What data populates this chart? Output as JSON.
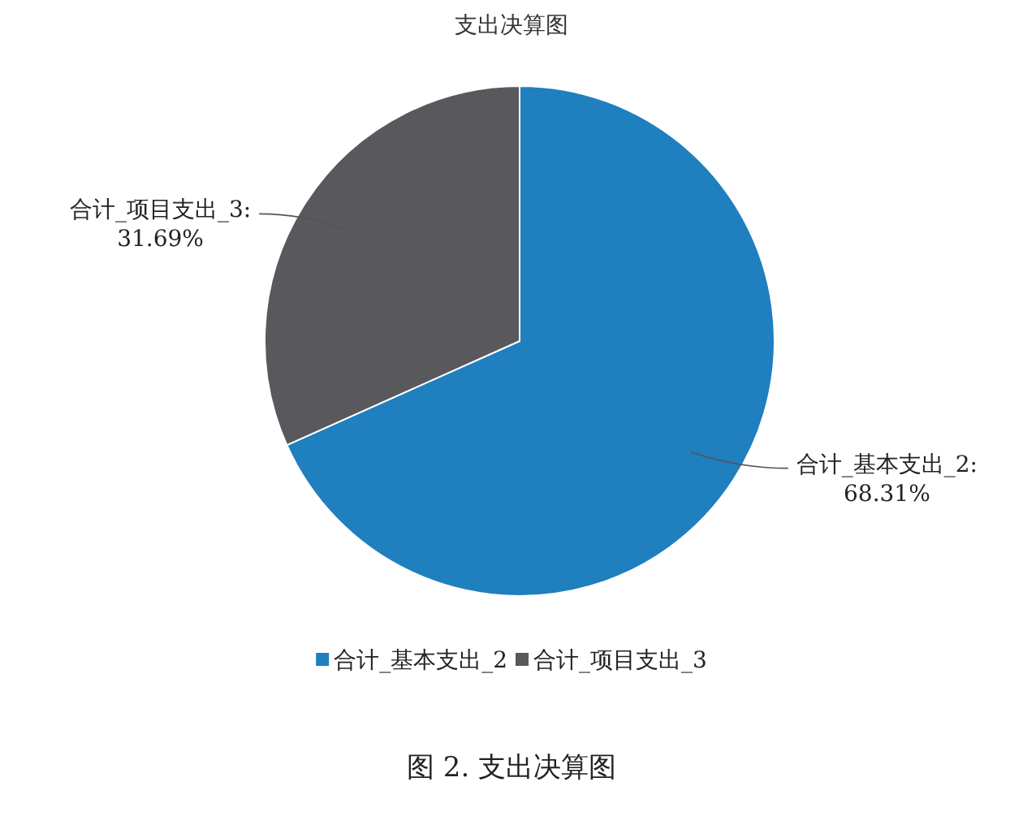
{
  "chart_data": {
    "type": "pie",
    "title": "支出决算图",
    "categories": [
      "合计_基本支出_2",
      "合计_项目支出_3"
    ],
    "values": [
      68.31,
      31.69
    ],
    "colors": [
      "#1f7fbf",
      "#58585d"
    ],
    "value_labels": [
      "合计_基本支出_2:\n68.31%",
      "合计_项目支出_3:\n31.69%"
    ],
    "legend": "bottom",
    "annotations": [
      "图 2. 支出决算图"
    ]
  }
}
